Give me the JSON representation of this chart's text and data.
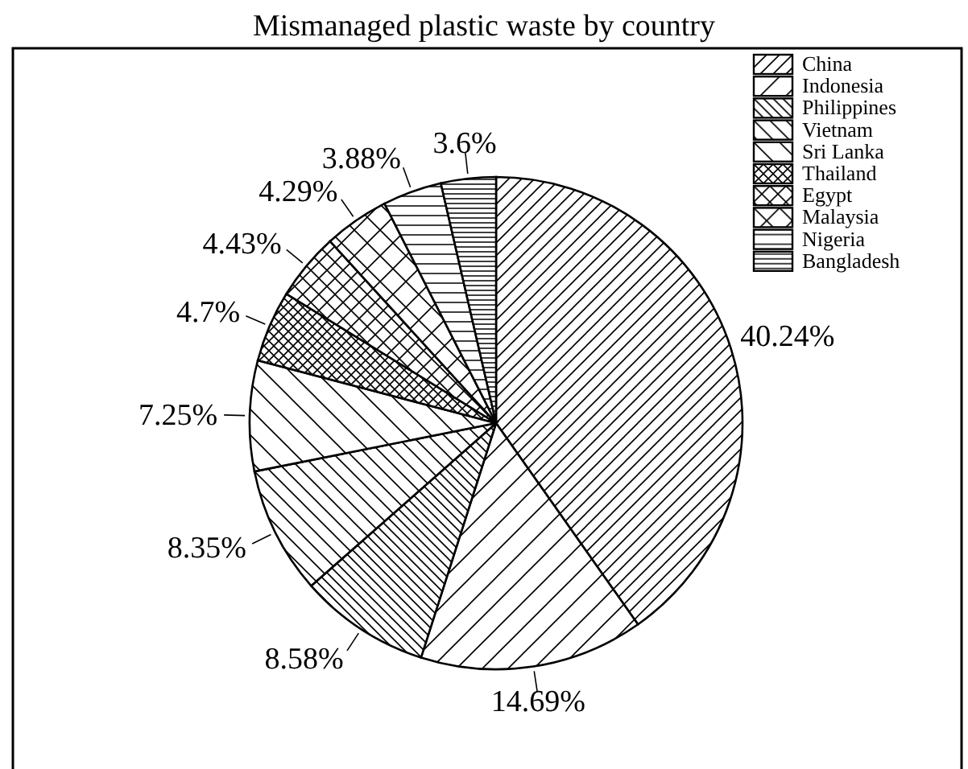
{
  "chart_data": {
    "type": "pie",
    "title": "Mismanaged plastic waste by country",
    "categories": [
      "China",
      "Indonesia",
      "Philippines",
      "Vietnam",
      "Sri Lanka",
      "Thailand",
      "Egypt",
      "Malaysia",
      "Nigeria",
      "Bangladesh"
    ],
    "values": [
      40.24,
      14.69,
      8.58,
      8.35,
      7.25,
      4.7,
      4.43,
      4.29,
      3.88,
      3.6
    ],
    "value_labels": [
      "40.24%",
      "14.69%",
      "8.58%",
      "8.35%",
      "7.25%",
      "4.7%",
      "4.43%",
      "4.29%",
      "3.88%",
      "3.6%"
    ],
    "colors": [
      "#000000",
      "#000000",
      "#000000",
      "#000000",
      "#000000",
      "#000000",
      "#000000",
      "#000000",
      "#000000",
      "#000000"
    ],
    "legend": "top right"
  }
}
